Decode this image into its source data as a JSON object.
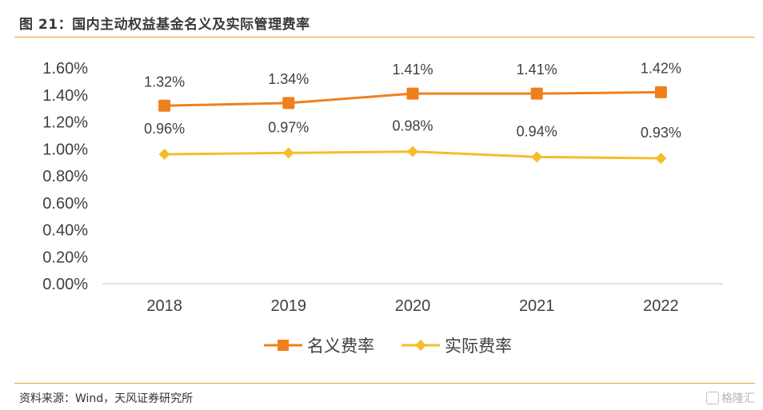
{
  "header": {
    "title": "图 21：国内主动权益基金名义及实际管理费率"
  },
  "footer": {
    "source": "资料来源：Wind，天风证券研究所",
    "watermark": "格隆汇"
  },
  "colors": {
    "nominal": "#F07F1E",
    "actual": "#F6BD2B",
    "rule": "#E8A33D",
    "axis": "#d9d9d9"
  },
  "chart_data": {
    "type": "line",
    "categories": [
      "2018",
      "2019",
      "2020",
      "2021",
      "2022"
    ],
    "series": [
      {
        "name": "名义费率",
        "values": [
          1.32,
          1.34,
          1.41,
          1.41,
          1.42
        ],
        "labels": [
          "1.32%",
          "1.34%",
          "1.41%",
          "1.41%",
          "1.42%"
        ],
        "marker": "square"
      },
      {
        "name": "实际费率",
        "values": [
          0.96,
          0.97,
          0.98,
          0.94,
          0.93
        ],
        "labels": [
          "0.96%",
          "0.97%",
          "0.98%",
          "0.94%",
          "0.93%"
        ],
        "marker": "diamond"
      }
    ],
    "y_ticks": [
      "0.00%",
      "0.20%",
      "0.40%",
      "0.60%",
      "0.80%",
      "1.00%",
      "1.20%",
      "1.40%",
      "1.60%"
    ],
    "ylim": [
      0,
      1.6
    ],
    "grid": false,
    "legend": "bottom"
  }
}
